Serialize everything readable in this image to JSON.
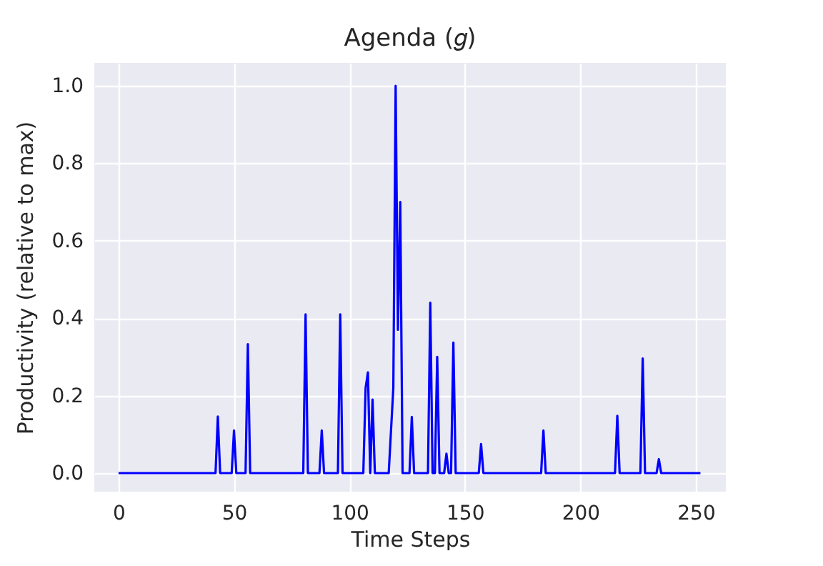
{
  "chart_data": {
    "type": "line",
    "title": "Agenda (𝑔)",
    "xlabel": "Time Steps",
    "ylabel": "Productivity (relative to max)",
    "x": [
      0,
      42,
      43,
      44,
      49,
      50,
      51,
      55,
      56,
      57,
      80,
      81,
      82,
      87,
      88,
      89,
      95,
      96,
      97,
      106,
      107,
      108,
      109,
      110,
      111,
      117,
      119,
      120,
      121,
      122,
      123,
      126,
      127,
      128,
      134,
      135,
      136,
      137,
      138,
      139,
      141,
      142,
      143,
      144,
      145,
      146,
      156,
      157,
      158,
      183,
      184,
      185,
      215,
      216,
      217,
      226,
      227,
      228,
      233,
      234,
      235,
      252
    ],
    "series": [
      {
        "color": "#0000ff",
        "values": [
          0,
          0,
          0.146,
          0,
          0,
          0.11,
          0,
          0,
          0.333,
          0,
          0,
          0.41,
          0,
          0,
          0.11,
          0,
          0,
          0.41,
          0,
          0,
          0.22,
          0.26,
          0,
          0.19,
          0,
          0,
          0.22,
          1.0,
          0.37,
          0.7,
          0,
          0,
          0.145,
          0,
          0,
          0.44,
          0,
          0,
          0.3,
          0,
          0,
          0.05,
          0,
          0,
          0.337,
          0,
          0,
          0.075,
          0,
          0,
          0.11,
          0,
          0,
          0.148,
          0,
          0,
          0.296,
          0,
          0,
          0.036,
          0,
          0
        ]
      }
    ],
    "xlim": [
      -10.5,
      263
    ],
    "ylim": [
      -0.048,
      1.059
    ],
    "xticks": [
      0,
      50,
      100,
      150,
      200,
      250
    ],
    "yticks": [
      {
        "value": 0,
        "label": "0.0"
      },
      0.2,
      0.4,
      0.6,
      0.8,
      {
        "value": 1,
        "label": "1.0"
      }
    ],
    "grid": true,
    "marker": "none",
    "line_style": "solid"
  }
}
